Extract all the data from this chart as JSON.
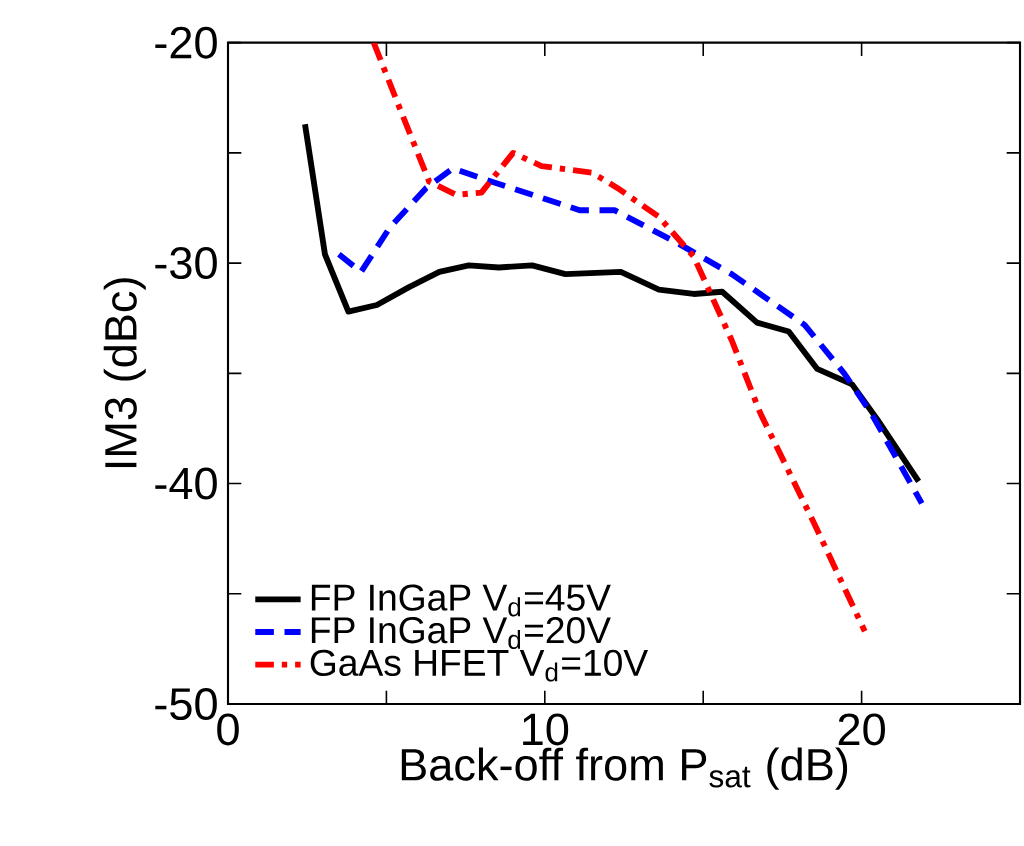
{
  "chart_data": {
    "type": "line",
    "xlabel": "Back-off from P$_{sat}$ (dB)",
    "ylabel": "IM3 (dBc)",
    "xlim": [
      0,
      25
    ],
    "ylim": [
      -50,
      -20
    ],
    "xticks": [
      0,
      {
        "value": 5,
        "label": null
      },
      10,
      {
        "value": 15,
        "label": null
      },
      20
    ],
    "yticks": [
      -50,
      {
        "value": -45,
        "label": null
      },
      -40,
      {
        "value": -35,
        "label": null
      },
      -30,
      {
        "value": -25,
        "label": null
      },
      -20
    ],
    "grid": false,
    "legend": "bottom left",
    "series": [
      {
        "name": "FP InGaP V$_{d}$=45V",
        "color": "#000000",
        "line_style": "solid",
        "x": [
          2.43,
          3.06,
          3.8,
          4.7,
          5.7,
          6.67,
          7.6,
          8.55,
          9.6,
          10.65,
          12.4,
          13.6,
          14.7,
          15.6,
          16.7,
          17.7,
          18.6,
          19.7,
          20.5,
          21.8
        ],
        "values": [
          -23.7,
          -29.6,
          -32.2,
          -31.9,
          -31.1,
          -30.4,
          -30.1,
          -30.2,
          -30.1,
          -30.5,
          -30.4,
          -31.2,
          -31.4,
          -31.3,
          -32.7,
          -33.1,
          -34.8,
          -35.5,
          -37.1,
          -39.9
        ]
      },
      {
        "name": "FP InGaP V$_{d}$=20V",
        "color": "#0000ff",
        "line_style": "dashed",
        "x": [
          3.5,
          4.2,
          5.1,
          6.25,
          7.1,
          8.1,
          9.6,
          11.1,
          12.2,
          14.2,
          15.9,
          18.2,
          19.45,
          20.3,
          21.9
        ],
        "values": [
          -29.6,
          -30.4,
          -28.4,
          -26.6,
          -25.7,
          -26.2,
          -26.9,
          -27.6,
          -27.6,
          -29.1,
          -30.5,
          -32.8,
          -35.0,
          -36.8,
          -40.9
        ]
      },
      {
        "name": "GaAs HFET V$_{d}$=10V",
        "color": "#ff0000",
        "line_style": "dashdot",
        "x": [
          4.6,
          5.4,
          6.35,
          7.2,
          8.0,
          9.0,
          9.9,
          11.5,
          12.3,
          13.6,
          14.7,
          15.9,
          16.8,
          18.5,
          20.1
        ],
        "values": [
          -20.0,
          -22.9,
          -26.3,
          -26.9,
          -26.8,
          -25.0,
          -25.6,
          -25.9,
          -26.6,
          -27.9,
          -29.7,
          -33.5,
          -36.8,
          -41.8,
          -46.7
        ]
      }
    ]
  }
}
